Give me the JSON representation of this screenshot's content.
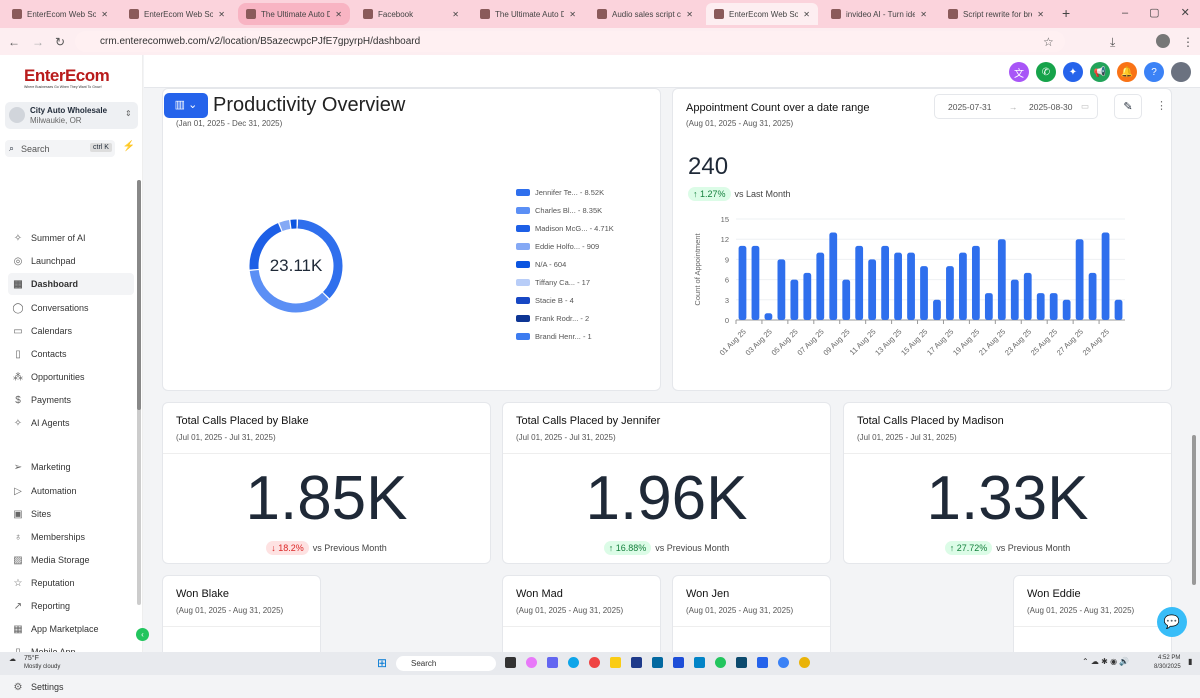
{
  "browser": {
    "tabs": [
      {
        "title": "EnterEcom Web Solu",
        "state": ""
      },
      {
        "title": "EnterEcom Web Solu",
        "state": ""
      },
      {
        "title": "The Ultimate Auto D",
        "state": "hl"
      },
      {
        "title": "Facebook",
        "state": ""
      },
      {
        "title": "The Ultimate Auto D",
        "state": ""
      },
      {
        "title": "Audio sales script cre",
        "state": ""
      },
      {
        "title": "EnterEcom Web Solu",
        "state": "active"
      },
      {
        "title": "invideo AI - Turn ide",
        "state": ""
      },
      {
        "title": "Script rewrite for bre",
        "state": ""
      }
    ],
    "url": "crm.enterecomweb.com/v2/location/B5azecwpcPJfE7gpyrpH/dashboard"
  },
  "sidebar": {
    "logo": "EnterEcom",
    "logo_tagline": "Where Businesses Go When They Want To Grow!",
    "account": {
      "name": "City Auto Wholesale",
      "location": "Milwaukie, OR"
    },
    "search": {
      "placeholder": "Search",
      "shortcut": "ctrl K"
    },
    "items": [
      {
        "label": "Summer of AI",
        "icon": "sparkles-icon",
        "glyph": "✧"
      },
      {
        "label": "Launchpad",
        "icon": "rocket-icon",
        "glyph": "◎"
      },
      {
        "label": "Dashboard",
        "icon": "grid-icon",
        "glyph": "▦",
        "active": true
      },
      {
        "label": "Conversations",
        "icon": "chat-icon",
        "glyph": "◯"
      },
      {
        "label": "Calendars",
        "icon": "calendar-icon",
        "glyph": "▭"
      },
      {
        "label": "Contacts",
        "icon": "contacts-icon",
        "glyph": "▯"
      },
      {
        "label": "Opportunities",
        "icon": "opportunities-icon",
        "glyph": "⁂"
      },
      {
        "label": "Payments",
        "icon": "payments-icon",
        "glyph": "$"
      },
      {
        "label": "AI Agents",
        "icon": "sparkles-icon",
        "glyph": "✧"
      },
      {
        "label": "Marketing",
        "icon": "send-icon",
        "glyph": "➢"
      },
      {
        "label": "Automation",
        "icon": "play-circle-icon",
        "glyph": "▷"
      },
      {
        "label": "Sites",
        "icon": "globe-icon",
        "glyph": "▣"
      },
      {
        "label": "Memberships",
        "icon": "award-icon",
        "glyph": "♁"
      },
      {
        "label": "Media Storage",
        "icon": "image-icon",
        "glyph": "▨"
      },
      {
        "label": "Reputation",
        "icon": "star-icon",
        "glyph": "☆"
      },
      {
        "label": "Reporting",
        "icon": "trend-icon",
        "glyph": "↗"
      },
      {
        "label": "App Marketplace",
        "icon": "apps-icon",
        "glyph": "▦"
      },
      {
        "label": "Mobile App",
        "icon": "phone-icon",
        "glyph": "▯"
      },
      {
        "label": "Settings",
        "icon": "gear-icon",
        "glyph": "⚙"
      }
    ]
  },
  "header": {
    "title": "Productivity Overview"
  },
  "donut_card": {
    "subtitle": "(Jan 01, 2025 - Dec 31, 2025)",
    "total": "23.11K",
    "legend": [
      {
        "label": "Jennifer Te... - 8.52K",
        "value": 8520,
        "color": "#2f6fed"
      },
      {
        "label": "Charles  Bl... - 8.35K",
        "value": 8350,
        "color": "#5b8ff5"
      },
      {
        "label": "Madison McG... - 4.71K",
        "value": 4710,
        "color": "#1d5fe6"
      },
      {
        "label": "Eddie Holfo... - 909",
        "value": 909,
        "color": "#85a9f5"
      },
      {
        "label": "N/A - 604",
        "value": 604,
        "color": "#0b55e0"
      },
      {
        "label": "Tiffany  Ca... - 17",
        "value": 17,
        "color": "#b8cdf8"
      },
      {
        "label": "Stacie B - 4",
        "value": 4,
        "color": "#1747c4"
      },
      {
        "label": "Frank  Rodr... - 2",
        "value": 2,
        "color": "#0d3594"
      },
      {
        "label": "Brandi Henr... - 1",
        "value": 1,
        "color": "#3d7cf0"
      }
    ]
  },
  "appt_card": {
    "title": "Appointment Count over a date range",
    "subtitle": "(Aug 01, 2025 - Aug 31, 2025)",
    "date_from": "2025-07-31",
    "date_to": "2025-08-30",
    "total": "240",
    "change": "↑ 1.27%",
    "change_label": "vs Last Month"
  },
  "chart_data": {
    "type": "bar",
    "ylabel": "Count of Appointment",
    "ylim": [
      0,
      15
    ],
    "yticks": [
      0,
      3,
      6,
      9,
      12,
      15
    ],
    "grid": true,
    "color": "#2f6fed",
    "categories": [
      "01 Aug 25",
      "02 Aug 25",
      "03 Aug 25",
      "04 Aug 25",
      "05 Aug 25",
      "06 Aug 25",
      "07 Aug 25",
      "08 Aug 25",
      "09 Aug 25",
      "10 Aug 25",
      "11 Aug 25",
      "12 Aug 25",
      "13 Aug 25",
      "14 Aug 25",
      "15 Aug 25",
      "16 Aug 25",
      "17 Aug 25",
      "18 Aug 25",
      "19 Aug 25",
      "20 Aug 25",
      "21 Aug 25",
      "22 Aug 25",
      "23 Aug 25",
      "24 Aug 25",
      "25 Aug 25",
      "26 Aug 25",
      "27 Aug 25",
      "28 Aug 25",
      "29 Aug 25",
      "30 Aug 25"
    ],
    "tick_labels": [
      "01 Aug 25",
      "03 Aug 25",
      "05 Aug 25",
      "07 Aug 25",
      "09 Aug 25",
      "11 Aug 25",
      "13 Aug 25",
      "15 Aug 25",
      "17 Aug 25",
      "19 Aug 25",
      "21 Aug 25",
      "23 Aug 25",
      "25 Aug 25",
      "27 Aug 25",
      "29 Aug 25"
    ],
    "values": [
      11,
      11,
      1,
      9,
      6,
      7,
      10,
      13,
      6,
      11,
      9,
      11,
      10,
      10,
      8,
      3,
      8,
      10,
      11,
      4,
      12,
      6,
      7,
      4,
      4,
      3,
      12,
      7,
      13,
      3
    ]
  },
  "stat_cards": [
    {
      "title": "Total Calls Placed by Blake",
      "subtitle": "(Jul 01, 2025 - Jul 31, 2025)",
      "value": "1.85K",
      "change": "↓ 18.2%",
      "dir": "down",
      "label": "vs Previous Month"
    },
    {
      "title": "Total Calls Placed by Jennifer",
      "subtitle": "(Jul 01, 2025 - Jul 31, 2025)",
      "value": "1.96K",
      "change": "↑ 16.88%",
      "dir": "up",
      "label": "vs Previous Month"
    },
    {
      "title": "Total Calls Placed by Madison",
      "subtitle": "(Jul 01, 2025 - Jul 31, 2025)",
      "value": "1.33K",
      "change": "↑ 27.72%",
      "dir": "up",
      "label": "vs Previous Month"
    }
  ],
  "won_cards": [
    {
      "title": "Won Blake",
      "subtitle": "(Aug 01, 2025 - Aug 31, 2025)"
    },
    {
      "title": "Won Mad",
      "subtitle": "(Aug 01, 2025 - Aug 31, 2025)"
    },
    {
      "title": "Won Jen",
      "subtitle": "(Aug 01, 2025 - Aug 31, 2025)"
    },
    {
      "title": "Won Eddie",
      "subtitle": "(Aug 01, 2025 - Aug 31, 2025)"
    }
  ],
  "taskbar": {
    "weather_temp": "75°F",
    "weather_desc": "Mostly cloudy",
    "search": "Search",
    "time": "4:52 PM",
    "date": "8/30/2025"
  }
}
